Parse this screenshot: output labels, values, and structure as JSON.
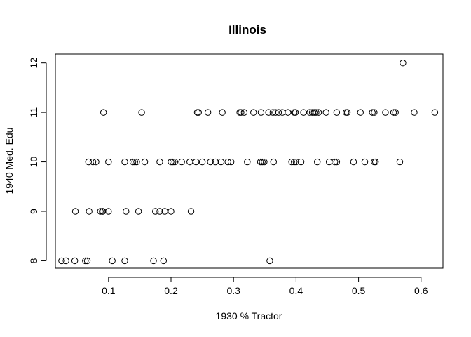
{
  "chart_data": {
    "type": "scatter",
    "title": "Illinois",
    "xlabel": "1930 % Tractor",
    "ylabel": "1940 Med. Edu",
    "xlim": [
      0.015,
      0.635
    ],
    "ylim": [
      7.85,
      12.18
    ],
    "x_ticks": [
      0.1,
      0.2,
      0.3,
      0.4,
      0.5,
      0.6
    ],
    "x_tick_labels": [
      "0.1",
      "0.2",
      "0.3",
      "0.4",
      "0.5",
      "0.6"
    ],
    "y_ticks": [
      8,
      9,
      10,
      11,
      12
    ],
    "y_tick_labels": [
      "8",
      "9",
      "10",
      "11",
      "12"
    ],
    "grid": false,
    "marker": "open-circle",
    "points": [
      {
        "x": 0.025,
        "y": 8
      },
      {
        "x": 0.032,
        "y": 8
      },
      {
        "x": 0.046,
        "y": 8
      },
      {
        "x": 0.063,
        "y": 8
      },
      {
        "x": 0.066,
        "y": 8
      },
      {
        "x": 0.106,
        "y": 8
      },
      {
        "x": 0.126,
        "y": 8
      },
      {
        "x": 0.172,
        "y": 8
      },
      {
        "x": 0.188,
        "y": 8
      },
      {
        "x": 0.358,
        "y": 8
      },
      {
        "x": 0.047,
        "y": 9
      },
      {
        "x": 0.069,
        "y": 9
      },
      {
        "x": 0.087,
        "y": 9
      },
      {
        "x": 0.09,
        "y": 9
      },
      {
        "x": 0.091,
        "y": 9
      },
      {
        "x": 0.1,
        "y": 9
      },
      {
        "x": 0.128,
        "y": 9
      },
      {
        "x": 0.148,
        "y": 9
      },
      {
        "x": 0.175,
        "y": 9
      },
      {
        "x": 0.182,
        "y": 9
      },
      {
        "x": 0.19,
        "y": 9
      },
      {
        "x": 0.2,
        "y": 9
      },
      {
        "x": 0.232,
        "y": 9
      },
      {
        "x": 0.068,
        "y": 10
      },
      {
        "x": 0.075,
        "y": 10
      },
      {
        "x": 0.08,
        "y": 10
      },
      {
        "x": 0.1,
        "y": 10
      },
      {
        "x": 0.126,
        "y": 10
      },
      {
        "x": 0.139,
        "y": 10
      },
      {
        "x": 0.142,
        "y": 10
      },
      {
        "x": 0.145,
        "y": 10
      },
      {
        "x": 0.158,
        "y": 10
      },
      {
        "x": 0.182,
        "y": 10
      },
      {
        "x": 0.2,
        "y": 10
      },
      {
        "x": 0.203,
        "y": 10
      },
      {
        "x": 0.206,
        "y": 10
      },
      {
        "x": 0.217,
        "y": 10
      },
      {
        "x": 0.23,
        "y": 10
      },
      {
        "x": 0.24,
        "y": 10
      },
      {
        "x": 0.25,
        "y": 10
      },
      {
        "x": 0.263,
        "y": 10
      },
      {
        "x": 0.271,
        "y": 10
      },
      {
        "x": 0.28,
        "y": 10
      },
      {
        "x": 0.291,
        "y": 10
      },
      {
        "x": 0.296,
        "y": 10
      },
      {
        "x": 0.322,
        "y": 10
      },
      {
        "x": 0.343,
        "y": 10
      },
      {
        "x": 0.346,
        "y": 10
      },
      {
        "x": 0.349,
        "y": 10
      },
      {
        "x": 0.364,
        "y": 10
      },
      {
        "x": 0.393,
        "y": 10
      },
      {
        "x": 0.397,
        "y": 10
      },
      {
        "x": 0.4,
        "y": 10
      },
      {
        "x": 0.408,
        "y": 10
      },
      {
        "x": 0.434,
        "y": 10
      },
      {
        "x": 0.453,
        "y": 10
      },
      {
        "x": 0.462,
        "y": 10
      },
      {
        "x": 0.465,
        "y": 10
      },
      {
        "x": 0.492,
        "y": 10
      },
      {
        "x": 0.51,
        "y": 10
      },
      {
        "x": 0.525,
        "y": 10
      },
      {
        "x": 0.527,
        "y": 10
      },
      {
        "x": 0.566,
        "y": 10
      },
      {
        "x": 0.092,
        "y": 11
      },
      {
        "x": 0.153,
        "y": 11
      },
      {
        "x": 0.242,
        "y": 11
      },
      {
        "x": 0.244,
        "y": 11
      },
      {
        "x": 0.259,
        "y": 11
      },
      {
        "x": 0.282,
        "y": 11
      },
      {
        "x": 0.31,
        "y": 11
      },
      {
        "x": 0.312,
        "y": 11
      },
      {
        "x": 0.317,
        "y": 11
      },
      {
        "x": 0.332,
        "y": 11
      },
      {
        "x": 0.344,
        "y": 11
      },
      {
        "x": 0.356,
        "y": 11
      },
      {
        "x": 0.363,
        "y": 11
      },
      {
        "x": 0.367,
        "y": 11
      },
      {
        "x": 0.372,
        "y": 11
      },
      {
        "x": 0.378,
        "y": 11
      },
      {
        "x": 0.387,
        "y": 11
      },
      {
        "x": 0.397,
        "y": 11
      },
      {
        "x": 0.399,
        "y": 11
      },
      {
        "x": 0.412,
        "y": 11
      },
      {
        "x": 0.422,
        "y": 11
      },
      {
        "x": 0.426,
        "y": 11
      },
      {
        "x": 0.429,
        "y": 11
      },
      {
        "x": 0.432,
        "y": 11
      },
      {
        "x": 0.436,
        "y": 11
      },
      {
        "x": 0.448,
        "y": 11
      },
      {
        "x": 0.465,
        "y": 11
      },
      {
        "x": 0.48,
        "y": 11
      },
      {
        "x": 0.482,
        "y": 11
      },
      {
        "x": 0.503,
        "y": 11
      },
      {
        "x": 0.522,
        "y": 11
      },
      {
        "x": 0.525,
        "y": 11
      },
      {
        "x": 0.543,
        "y": 11
      },
      {
        "x": 0.556,
        "y": 11
      },
      {
        "x": 0.559,
        "y": 11
      },
      {
        "x": 0.589,
        "y": 11
      },
      {
        "x": 0.622,
        "y": 11
      },
      {
        "x": 0.571,
        "y": 12
      }
    ]
  }
}
